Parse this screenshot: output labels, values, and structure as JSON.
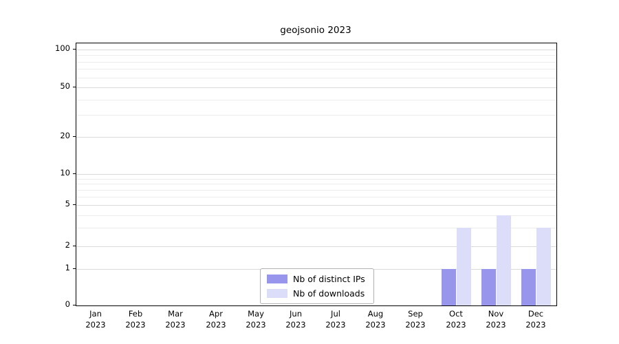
{
  "chart_data": {
    "type": "bar",
    "title": "geojsonio 2023",
    "categories": [
      "Jan 2023",
      "Feb 2023",
      "Mar 2023",
      "Apr 2023",
      "May 2023",
      "Jun 2023",
      "Jul 2023",
      "Aug 2023",
      "Sep 2023",
      "Oct 2023",
      "Nov 2023",
      "Dec 2023"
    ],
    "series": [
      {
        "name": "Nb of distinct IPs",
        "color": "#9895ec",
        "values": [
          0,
          0,
          0,
          0,
          0,
          0,
          0,
          0,
          0,
          1,
          1,
          1
        ]
      },
      {
        "name": "Nb of downloads",
        "color": "#dcddf9",
        "values": [
          0,
          0,
          0,
          0,
          0,
          0,
          0,
          0,
          0,
          3,
          4,
          3
        ]
      }
    ],
    "y_ticks": [
      0,
      1,
      2,
      5,
      10,
      20,
      50,
      100
    ],
    "ylim": [
      0,
      110
    ],
    "yscale": "log-like",
    "grid": "horizontal",
    "legend_position": "bottom-center"
  },
  "colors": {
    "grid_major": "#dadada",
    "grid_minor": "#ececec",
    "axis": "#000000",
    "background": "#ffffff"
  }
}
